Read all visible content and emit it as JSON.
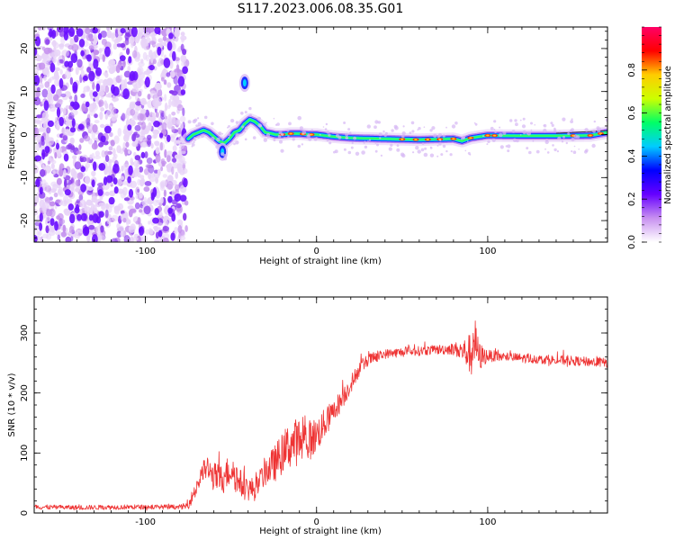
{
  "title": "S117.2023.006.08.35.G01",
  "colors": {
    "snr_line": "#ee3333",
    "axis": "#000000"
  },
  "chart_data": [
    {
      "type": "heatmap",
      "title": "",
      "xlabel": "Height of straight line (km)",
      "ylabel": "Frequency (Hz)",
      "xlim": [
        -165,
        170
      ],
      "ylim": [
        -25,
        25
      ],
      "x_ticks": [
        -100,
        0,
        100
      ],
      "y_ticks": [
        -20,
        -10,
        0,
        10,
        20
      ],
      "colorbar": {
        "label": "Normalized spectral amplitude",
        "range": [
          0,
          1
        ],
        "ticks": [
          0.0,
          0.2,
          0.4,
          0.6,
          0.8
        ],
        "colormap": [
          "#ffffff",
          "#c890f0",
          "#6600ff",
          "#0000ff",
          "#00ccff",
          "#00ff66",
          "#ccff00",
          "#ffcc00",
          "#ff0000",
          "#ff0066"
        ]
      },
      "noise_region_x": [
        -165,
        -76
      ],
      "ridge": {
        "x": [
          -75,
          -72,
          -69,
          -66,
          -63,
          -60,
          -57,
          -54,
          -51,
          -48,
          -45,
          -42,
          -39,
          -36,
          -33,
          -30,
          -27,
          -24,
          -20,
          -15,
          -10,
          -5,
          0,
          10,
          20,
          40,
          60,
          80,
          85,
          90,
          100,
          120,
          140,
          160,
          170
        ],
        "freq": [
          -1,
          0,
          0.5,
          1,
          0.5,
          -0.5,
          -1.5,
          -2,
          -1,
          0.5,
          1,
          2.5,
          3.5,
          3,
          2,
          0.5,
          0.3,
          0,
          0,
          0.2,
          0.2,
          0,
          0,
          -0.5,
          -0.8,
          -1,
          -1.2,
          -1.0,
          -1.5,
          -0.8,
          -0.2,
          -0.3,
          -0.3,
          -0.2,
          0.5
        ]
      },
      "features": [
        {
          "x": -42,
          "freq": 12
        },
        {
          "x": -55,
          "freq": -4
        }
      ]
    },
    {
      "type": "line",
      "title": "",
      "xlabel": "Height of straight line (km)",
      "ylabel": "SNR (10 * v/v)",
      "xlim": [
        -165,
        170
      ],
      "ylim": [
        0,
        360
      ],
      "x_ticks": [
        -100,
        0,
        100
      ],
      "y_ticks": [
        0,
        100,
        200,
        300
      ],
      "series": [
        {
          "color": "#ee3333",
          "x": [
            -165,
            -140,
            -110,
            -80,
            -75,
            -70,
            -65,
            -60,
            -55,
            -50,
            -45,
            -40,
            -35,
            -30,
            -25,
            -20,
            -15,
            -10,
            -5,
            0,
            5,
            10,
            15,
            20,
            25,
            30,
            40,
            50,
            60,
            70,
            80,
            85,
            90,
            92,
            95,
            100,
            110,
            120,
            140,
            160,
            170
          ],
          "values": [
            10,
            9,
            10,
            10,
            12,
            45,
            75,
            60,
            55,
            75,
            50,
            40,
            40,
            70,
            80,
            100,
            115,
            120,
            120,
            130,
            150,
            170,
            190,
            215,
            240,
            255,
            265,
            268,
            270,
            272,
            274,
            270,
            265,
            290,
            260,
            262,
            260,
            258,
            255,
            252,
            250
          ],
          "noise_amplitude": [
            4,
            4,
            4,
            4,
            6,
            18,
            20,
            25,
            25,
            30,
            25,
            20,
            20,
            25,
            30,
            35,
            40,
            40,
            35,
            30,
            25,
            20,
            18,
            15,
            12,
            10,
            8,
            8,
            8,
            8,
            10,
            18,
            35,
            45,
            25,
            10,
            8,
            8,
            8,
            8,
            8
          ]
        }
      ]
    }
  ]
}
